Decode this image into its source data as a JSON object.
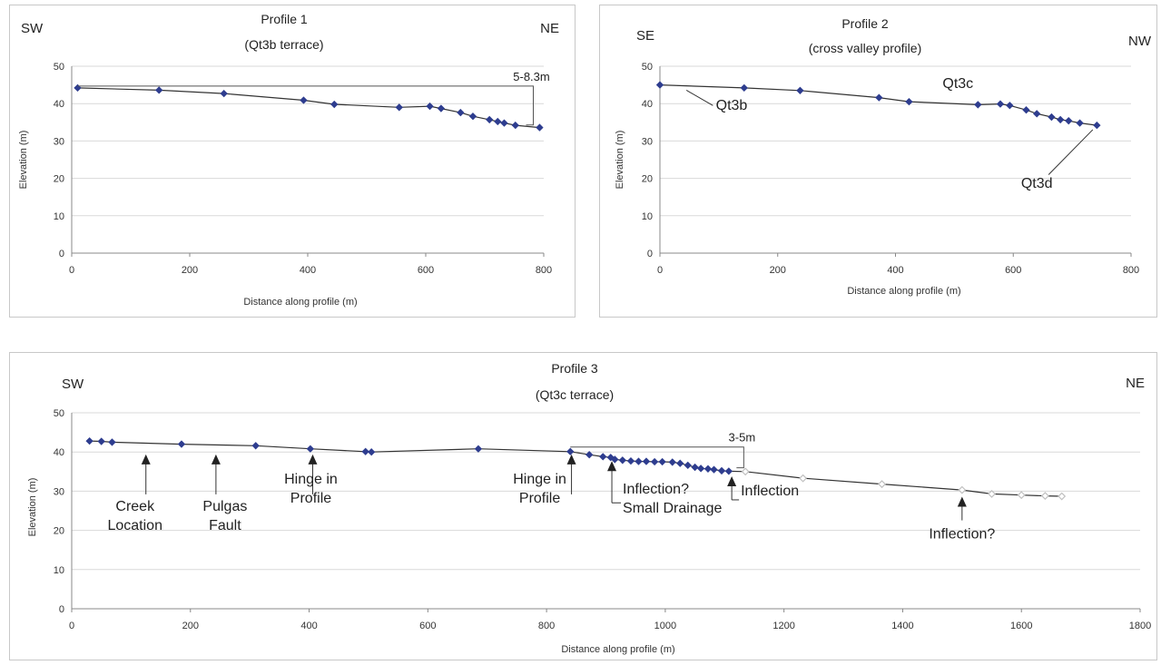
{
  "colors": {
    "marker": "#2e3d8f",
    "marker_hollow": "#c0c0c0",
    "line": "#333333",
    "grid": "#d9d9d9"
  },
  "chart_data": [
    {
      "type": "line",
      "title": "Profile 1",
      "subtitle": "(Qt3b terrace)",
      "left_label": "SW",
      "right_label": "NE",
      "xlabel": "Distance along profile (m)",
      "ylabel": "Elevation (m)",
      "xlim": [
        0,
        800
      ],
      "ylim": [
        0,
        50
      ],
      "xticks": [
        "0",
        "200",
        "400",
        "600",
        "800"
      ],
      "yticks": [
        "0",
        "10",
        "20",
        "30",
        "40",
        "50"
      ],
      "grid": true,
      "series": [
        {
          "x": [
            10,
            148,
            258,
            393,
            445,
            555,
            607,
            626,
            659,
            680,
            708,
            722,
            733,
            752,
            793
          ],
          "y": [
            44.2,
            43.6,
            42.7,
            40.9,
            39.8,
            39,
            39.3,
            38.7,
            37.6,
            36.6,
            35.7,
            35.2,
            34.8,
            34.2,
            33.6
          ]
        }
      ],
      "annotations": [
        {
          "text": "5-8.3m",
          "type": "bracket",
          "x_from": 10,
          "x_to": 770,
          "y_top": 44.2,
          "y_bottom": 33.8
        }
      ]
    },
    {
      "type": "line",
      "title": "Profile 2",
      "subtitle": "(cross valley profile)",
      "left_label": "SE",
      "right_label": "NW",
      "xlabel": "Distance along profile (m)",
      "ylabel": "Elevation (m)",
      "xlim": [
        0,
        800
      ],
      "ylim": [
        0,
        50
      ],
      "xticks": [
        "0",
        "200",
        "400",
        "600",
        "800"
      ],
      "yticks": [
        "0",
        "10",
        "20",
        "30",
        "40",
        "50"
      ],
      "grid": true,
      "series": [
        {
          "x": [
            0,
            143,
            238,
            372,
            423,
            540,
            578,
            594,
            622,
            640,
            665,
            680,
            694,
            713,
            742
          ],
          "y": [
            45,
            44.2,
            43.5,
            41.6,
            40.5,
            39.7,
            39.9,
            39.5,
            38.3,
            37.3,
            36.4,
            35.7,
            35.4,
            34.8,
            34.2
          ]
        }
      ],
      "annotations": [
        {
          "text": "Qt3b",
          "x": 60,
          "y": 42.8
        },
        {
          "text": "Qt3c",
          "x": 535,
          "y": 40.5
        },
        {
          "text": "Qt3d",
          "x": 650,
          "y": 27.5
        }
      ]
    },
    {
      "type": "line",
      "title": "Profile 3",
      "subtitle": "(Qt3c terrace)",
      "left_label": "SW",
      "right_label": "NE",
      "xlabel": "Distance along profile (m)",
      "ylabel": "Elevation (m)",
      "xlim": [
        0,
        1800
      ],
      "ylim": [
        0,
        50
      ],
      "xticks": [
        "0",
        "200",
        "400",
        "600",
        "800",
        "1000",
        "1200",
        "1400",
        "1600",
        "1800"
      ],
      "yticks": [
        "0",
        "10",
        "20",
        "30",
        "40",
        "50"
      ],
      "grid": true,
      "series": [
        {
          "x": [
            30,
            50,
            68,
            185,
            310,
            402,
            495,
            505,
            685,
            840,
            872,
            895,
            908,
            915,
            928,
            942,
            955,
            968,
            982,
            995,
            1012,
            1025,
            1038,
            1050,
            1060,
            1072,
            1082,
            1095,
            1107
          ],
          "y": [
            42.8,
            42.7,
            42.5,
            42,
            41.6,
            40.8,
            40.1,
            40,
            40.8,
            40.1,
            39.3,
            38.8,
            38.6,
            38.1,
            37.9,
            37.7,
            37.6,
            37.6,
            37.5,
            37.5,
            37.4,
            37.1,
            36.6,
            36.1,
            35.8,
            35.7,
            35.5,
            35.2,
            35.1
          ],
          "marker": "filled"
        },
        {
          "x": [
            1135,
            1232,
            1365,
            1500,
            1550,
            1600,
            1640,
            1668
          ],
          "y": [
            35,
            33.3,
            31.8,
            30.3,
            29.3,
            29,
            28.8,
            28.7
          ],
          "marker": "hollow"
        }
      ],
      "annotations": [
        {
          "text": "Creek Location",
          "lines": [
            "Creek",
            "Location"
          ],
          "arrow_x": 125
        },
        {
          "text": "Pulgas Fault",
          "lines": [
            "Pulgas",
            "Fault"
          ],
          "arrow_x": 243
        },
        {
          "text": "Hinge in Profile",
          "lines": [
            "Hinge in",
            "Profile"
          ],
          "arrow_x": 406
        },
        {
          "text": "Hinge in Profile",
          "lines": [
            "Hinge in",
            "Profile"
          ],
          "arrow_x": 842
        },
        {
          "text": "Inflection? Small Drainage",
          "lines": [
            "Inflection?",
            "Small Drainage"
          ],
          "arrow_x": 910
        },
        {
          "text": "Inflection",
          "lines": [
            "Inflection"
          ],
          "arrow_x": 1112
        },
        {
          "text": "Inflection?",
          "lines": [
            "Inflection?"
          ],
          "arrow_x": 1500
        },
        {
          "text": "3-5m",
          "type": "bracket",
          "x_from": 840,
          "x_to": 1120,
          "y_top": 40.8,
          "y_bottom": 35.5
        }
      ]
    }
  ]
}
